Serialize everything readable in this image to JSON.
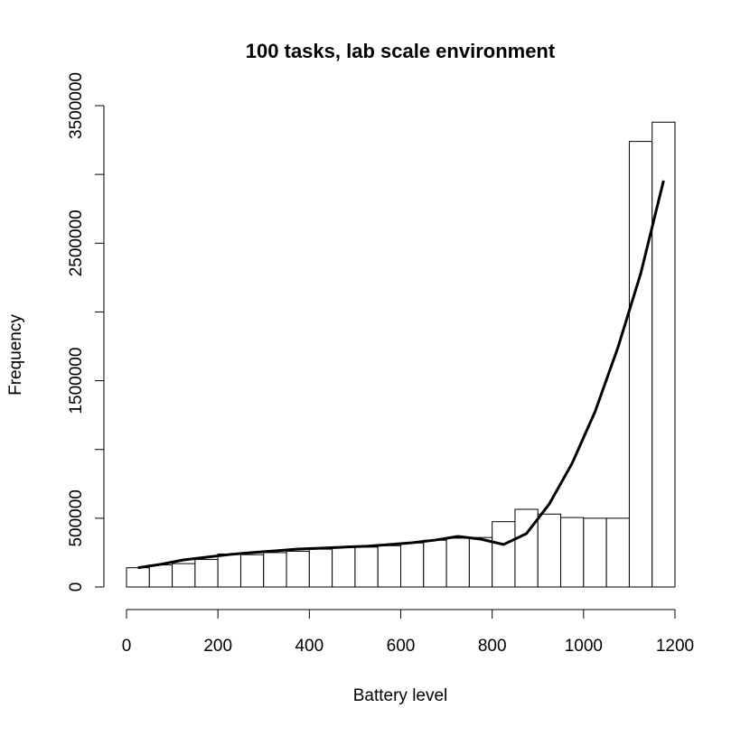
{
  "chart_data": {
    "type": "histogram",
    "title": "100 tasks, lab scale environment",
    "xlabel": "Battery level",
    "ylabel": "Frequency",
    "bins": [
      0,
      50,
      100,
      150,
      200,
      250,
      300,
      350,
      400,
      450,
      500,
      550,
      600,
      650,
      700,
      750,
      800,
      850,
      900,
      950,
      1000,
      1050,
      1100,
      1150,
      1200
    ],
    "counts": [
      140000,
      160000,
      170000,
      200000,
      240000,
      235000,
      250000,
      260000,
      275000,
      290000,
      290000,
      300000,
      320000,
      340000,
      355000,
      360000,
      475000,
      565000,
      530000,
      505000,
      500000,
      500000,
      3240000,
      3380000
    ],
    "color": "#ffffff",
    "line": {
      "color": "#000000",
      "x": [
        25,
        75,
        125,
        175,
        225,
        275,
        325,
        375,
        425,
        475,
        525,
        575,
        625,
        675,
        725,
        775,
        825,
        875,
        925,
        975,
        1025,
        1075,
        1125,
        1175
      ],
      "values": [
        140000,
        165000,
        197000,
        217000,
        236000,
        250000,
        263000,
        276000,
        282000,
        290000,
        296000,
        309000,
        322000,
        341000,
        368000,
        348000,
        309000,
        388000,
        604000,
        900000,
        1274000,
        1740000,
        2279000,
        2955000
      ]
    },
    "xlim": [
      0,
      1200
    ],
    "xticks": [
      0,
      200,
      400,
      600,
      800,
      1000,
      1200
    ],
    "ylim": [
      0,
      3500000
    ],
    "yticks": [
      0,
      500000,
      {
        "value": 1000000,
        "label": null
      },
      1500000,
      {
        "value": 2000000,
        "label": null
      },
      2500000,
      {
        "value": 3000000,
        "label": null
      },
      3500000
    ]
  }
}
